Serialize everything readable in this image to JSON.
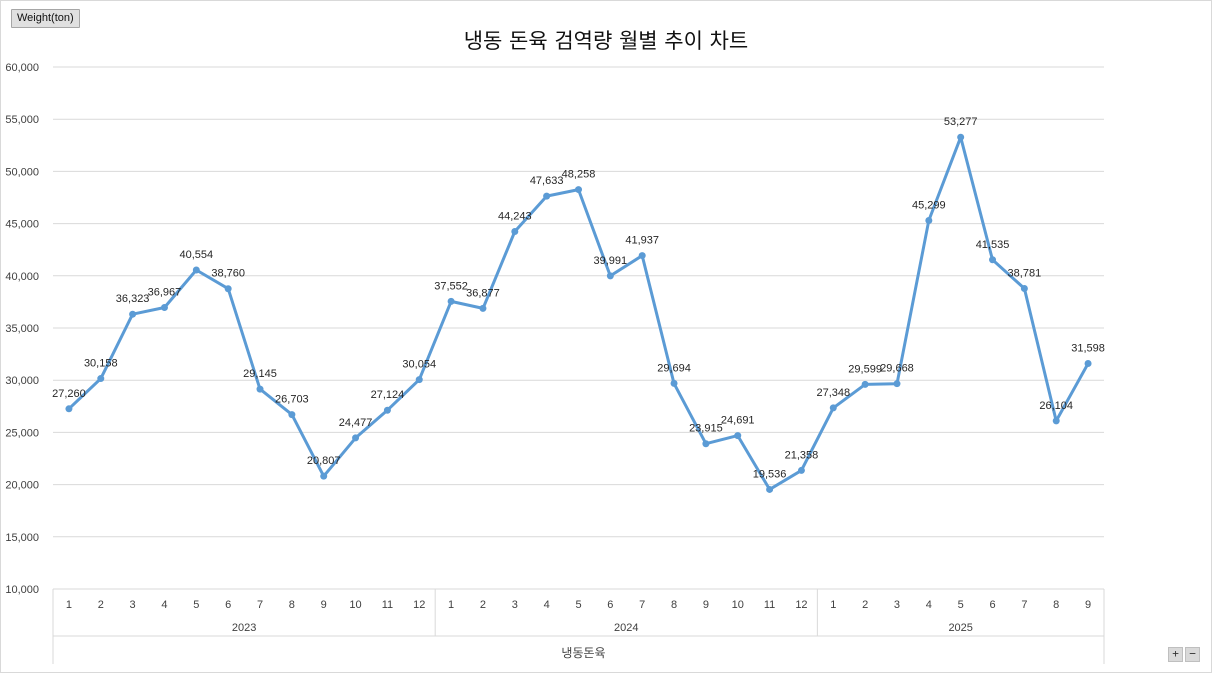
{
  "chart_data": {
    "type": "line",
    "title": "냉동 돈육 검역량 월별 추이 차트",
    "unit_label": "Weight(ton)",
    "x_axis_series_label": "냉동돈육",
    "ylim": [
      10000,
      60000
    ],
    "y_ticks": [
      "10,000",
      "15,000",
      "20,000",
      "25,000",
      "30,000",
      "35,000",
      "40,000",
      "45,000",
      "50,000",
      "55,000",
      "60,000"
    ],
    "grid": true,
    "legend": "none",
    "line_color": "#5b9bd5",
    "groups": [
      {
        "year": "2023",
        "months": [
          "1",
          "2",
          "3",
          "4",
          "5",
          "6",
          "7",
          "8",
          "9",
          "10",
          "11",
          "12"
        ],
        "values": [
          27260,
          30158,
          36323,
          36967,
          40554,
          38760,
          29145,
          26703,
          20807,
          24477,
          27124,
          30054
        ]
      },
      {
        "year": "2024",
        "months": [
          "1",
          "2",
          "3",
          "4",
          "5",
          "6",
          "7",
          "8",
          "9",
          "10",
          "11",
          "12"
        ],
        "values": [
          37552,
          36877,
          44243,
          47633,
          48258,
          39991,
          41937,
          29694,
          23915,
          24691,
          19536,
          21358
        ]
      },
      {
        "year": "2025",
        "months": [
          "1",
          "2",
          "3",
          "4",
          "5",
          "6",
          "7",
          "8",
          "9"
        ],
        "values": [
          27348,
          29599,
          29668,
          45299,
          53277,
          41535,
          38781,
          26104,
          31598
        ]
      }
    ]
  },
  "zoom": {
    "plus": "+",
    "minus": "−"
  }
}
